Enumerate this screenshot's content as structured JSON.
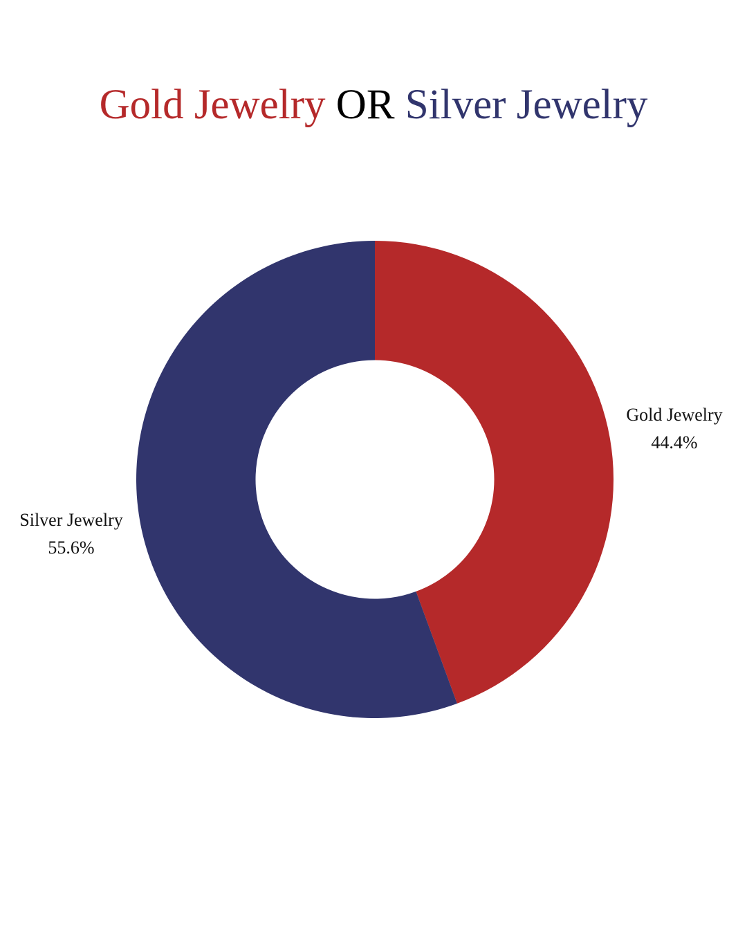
{
  "chart_data": {
    "type": "pie",
    "donut": true,
    "title_parts": [
      {
        "text": "Gold Jewelry",
        "color": "#b5292a"
      },
      {
        "text": " OR ",
        "color": "#000000"
      },
      {
        "text": "Silver Jewelry",
        "color": "#31356d"
      }
    ],
    "slices": [
      {
        "label": "Gold Jewelry",
        "value": 44.4,
        "display": "44.4%",
        "color": "#b5292a"
      },
      {
        "label": "Silver Jewelry",
        "value": 55.6,
        "display": "55.6%",
        "color": "#31356d"
      }
    ],
    "start": "top",
    "direction": "clockwise",
    "hole_fraction": 0.5
  }
}
